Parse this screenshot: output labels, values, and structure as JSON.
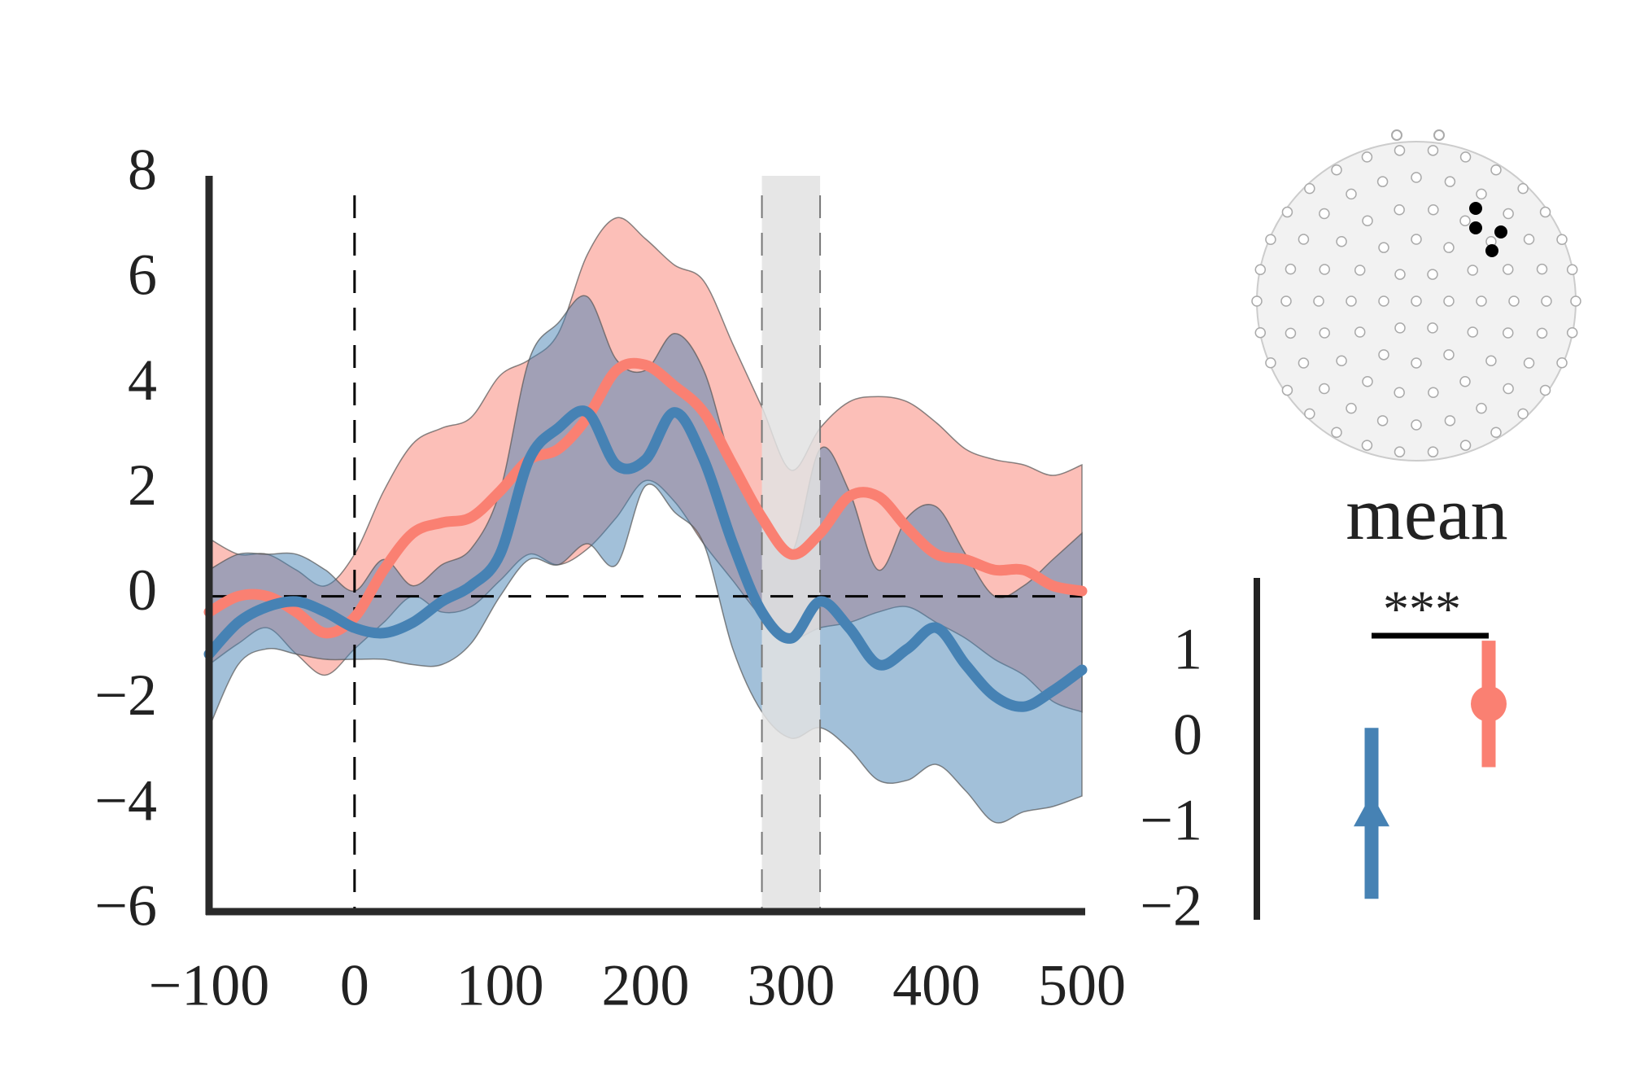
{
  "chart_data": [
    {
      "type": "line",
      "x": [
        -100,
        -80,
        -60,
        -40,
        -20,
        0,
        20,
        40,
        60,
        80,
        100,
        120,
        140,
        160,
        180,
        200,
        220,
        240,
        260,
        280,
        300,
        320,
        340,
        360,
        380,
        400,
        420,
        440,
        460,
        480,
        500
      ],
      "series": [
        {
          "color": "#fa8072",
          "values": [
            -0.3,
            0,
            0,
            -0.3,
            -0.7,
            -0.4,
            0.5,
            1.2,
            1.4,
            1.5,
            2.0,
            2.6,
            2.8,
            3.4,
            4.3,
            4.4,
            4.0,
            3.5,
            2.5,
            1.5,
            0.8,
            1.2,
            1.9,
            1.9,
            1.3,
            0.8,
            0.7,
            0.5,
            0.5,
            0.2,
            0.1
          ],
          "upper": [
            1.1,
            0.8,
            0.8,
            0.5,
            0.2,
            0.8,
            2.0,
            2.9,
            3.2,
            3.4,
            4.2,
            4.5,
            5.0,
            6.5,
            7.2,
            6.8,
            6.3,
            6.0,
            4.8,
            3.6,
            2.4,
            3.2,
            3.7,
            3.8,
            3.7,
            3.3,
            2.8,
            2.6,
            2.5,
            2.3,
            2.5
          ],
          "lower": [
            -1.3,
            -0.9,
            -0.6,
            -1.1,
            -1.5,
            -1.0,
            -0.5,
            0.0,
            -0.3,
            -0.2,
            0.3,
            0.8,
            0.6,
            0.9,
            1.5,
            2.2,
            1.8,
            1.0,
            0.3,
            -0.4,
            -0.8,
            -0.6,
            -0.5,
            -0.3,
            -0.2,
            -0.5,
            -0.8,
            -1.2,
            -1.5,
            -2.0,
            -2.2
          ]
        },
        {
          "color": "#4682b4",
          "values": [
            -1.1,
            -0.5,
            -0.2,
            -0.1,
            -0.3,
            -0.6,
            -0.7,
            -0.5,
            -0.1,
            0.2,
            0.8,
            2.6,
            3.2,
            3.5,
            2.5,
            2.6,
            3.5,
            2.6,
            1.0,
            -0.3,
            -0.8,
            -0.1,
            -0.6,
            -1.3,
            -1.0,
            -0.6,
            -1.3,
            -1.9,
            -2.1,
            -1.8,
            -1.4
          ],
          "upper": [
            0.5,
            0.8,
            0.8,
            0.8,
            0.5,
            0.1,
            0.7,
            0.2,
            0.6,
            0.9,
            2.0,
            4.5,
            5.2,
            5.7,
            4.5,
            4.3,
            5.0,
            4.3,
            2.5,
            1.6,
            0.8,
            2.8,
            2.0,
            0.5,
            1.5,
            1.7,
            0.8,
            0.0,
            0.2,
            0.7,
            1.2
          ],
          "lower": [
            -2.5,
            -1.3,
            -1.0,
            -1.1,
            -1.2,
            -1.2,
            -1.2,
            -1.3,
            -1.3,
            -0.9,
            0.0,
            0.7,
            0.6,
            1.0,
            0.6,
            2.1,
            1.6,
            1.0,
            -1.0,
            -2.2,
            -2.7,
            -2.5,
            -2.9,
            -3.5,
            -3.5,
            -3.2,
            -3.7,
            -4.3,
            -4.1,
            -4.0,
            -3.8
          ]
        }
      ],
      "xlim": [
        -100,
        500
      ],
      "xticks": [
        {
          "value": -100,
          "label": "−100"
        },
        0,
        100,
        200,
        300,
        400,
        500
      ],
      "ylim": [
        -6,
        8
      ],
      "yticks": [
        {
          "value": -6,
          "label": "−6"
        },
        {
          "value": -4,
          "label": "−4"
        },
        {
          "value": -2,
          "label": "−2"
        },
        0,
        2,
        4,
        6,
        8
      ],
      "shade": [
        280,
        320
      ],
      "vlines": [
        0,
        280,
        320
      ],
      "hline": 0
    },
    {
      "type": "point",
      "title": "mean",
      "annotation": "***",
      "series": [
        {
          "color": "#4682b4",
          "marker": "triangle",
          "values": [
            -0.85
          ],
          "errors": [
            1.0
          ]
        },
        {
          "color": "#fa8072",
          "marker": "circle",
          "values": [
            0.43
          ],
          "errors": [
            0.74
          ]
        }
      ],
      "ylim": [
        -2,
        2
      ],
      "yticks": [
        {
          "value": -2,
          "label": "−2"
        },
        {
          "value": -1,
          "label": "−1"
        },
        0,
        1
      ]
    }
  ]
}
